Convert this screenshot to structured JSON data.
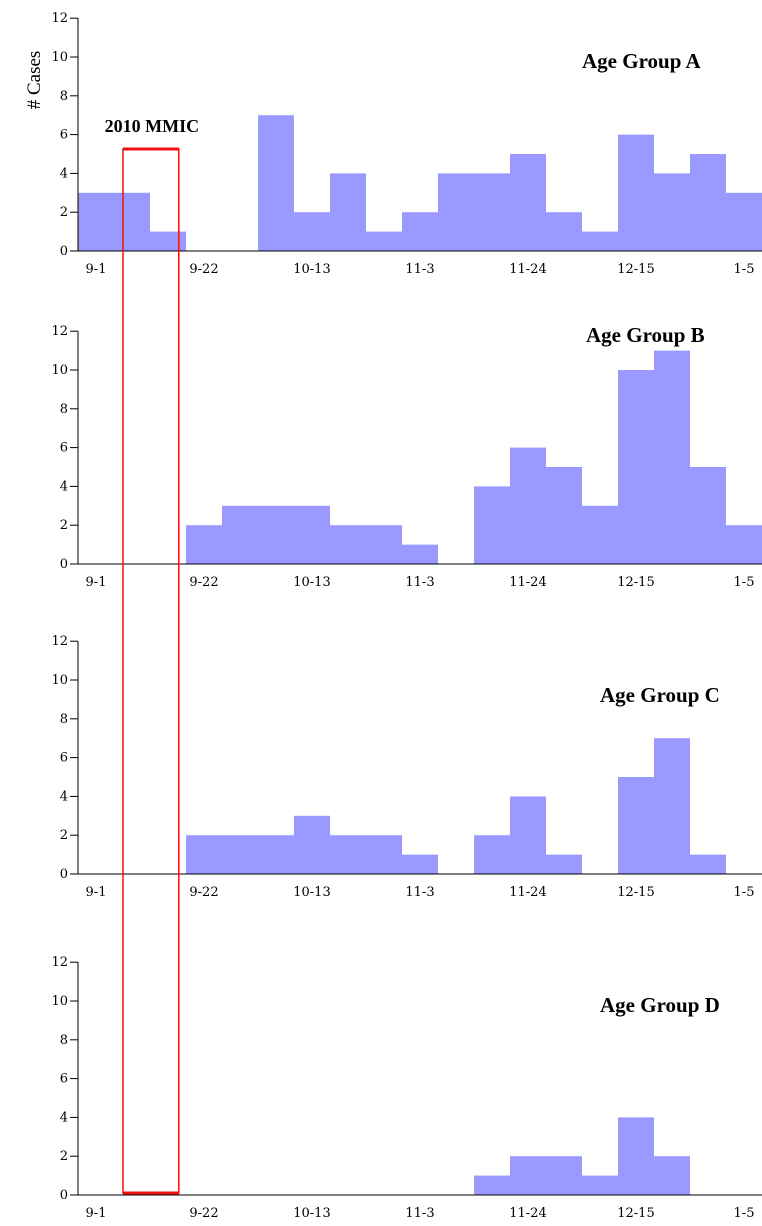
{
  "chart_data": {
    "type": "bar",
    "ylabel": "# Cases",
    "ylim": [
      0,
      12
    ],
    "yticks": [
      0,
      2,
      4,
      6,
      8,
      10,
      12
    ],
    "xticks": [
      "9-1",
      "9-22",
      "10-13",
      "11-3",
      "11-24",
      "12-15",
      "1-5"
    ],
    "bin_days": 7,
    "bar_color": "#9999ff",
    "annotation": {
      "label": "2010 MMIC",
      "start_week": 1.25,
      "end_week": 2.8,
      "color": "#ee1111"
    },
    "panels": [
      {
        "name": "Age Group A",
        "values": [
          3,
          3,
          1,
          0,
          0,
          7,
          2,
          4,
          1,
          2,
          4,
          4,
          5,
          2,
          1,
          6,
          4,
          5,
          3
        ]
      },
      {
        "name": "Age Group B",
        "values": [
          0,
          0,
          0,
          2,
          3,
          3,
          3,
          2,
          2,
          1,
          0,
          4,
          6,
          5,
          3,
          10,
          11,
          5,
          2
        ]
      },
      {
        "name": "Age Group C",
        "values": [
          0,
          0,
          0,
          2,
          2,
          2,
          3,
          2,
          2,
          1,
          0,
          2,
          4,
          1,
          0,
          5,
          7,
          1,
          0
        ]
      },
      {
        "name": "Age Group D",
        "values": [
          0,
          0,
          0,
          0,
          0,
          0,
          0,
          0,
          0,
          0,
          0,
          1,
          2,
          2,
          1,
          4,
          2,
          0,
          0
        ]
      }
    ]
  }
}
